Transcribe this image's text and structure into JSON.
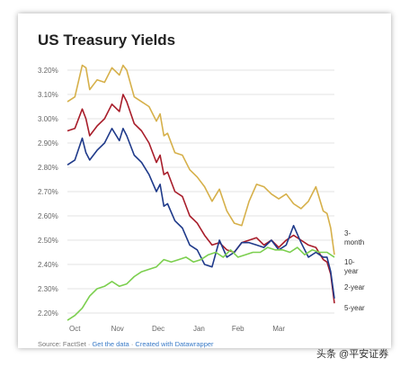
{
  "title": "US Treasury Yields",
  "footer": {
    "source": "Source: FactSet",
    "sep1": " · ",
    "get_data": "Get the data",
    "sep2": " · ",
    "created": "Created with Datawrapper"
  },
  "watermark": "头条 @平安证券",
  "chart_data": {
    "type": "line",
    "title": "US Treasury Yields",
    "xlabel": "",
    "ylabel": "",
    "x_ticks": [
      "Oct",
      "Nov",
      "Dec",
      "Jan",
      "Feb",
      "Mar"
    ],
    "y_ticks": [
      "3.20%",
      "3.10%",
      "3.00%",
      "2.90%",
      "2.80%",
      "2.70%",
      "2.60%",
      "2.50%",
      "2.40%",
      "2.30%",
      "2.20%"
    ],
    "ylim": [
      2.2,
      3.2
    ],
    "grid": true,
    "x_index_note": "x is trading-day index from late Sep to late Mar",
    "colors": {
      "3-month": "#7ccf4f",
      "10-year": "#d6b04a",
      "2-year": "#a81d2a",
      "5-year": "#1f3a8a"
    },
    "series": [
      {
        "name": "10-year",
        "end_label": "10-\nyear",
        "x": [
          0,
          4,
          8,
          10,
          12,
          16,
          20,
          24,
          28,
          30,
          32,
          36,
          40,
          44,
          48,
          50,
          52,
          54,
          58,
          62,
          66,
          70,
          74,
          78,
          82,
          86,
          90,
          94,
          98,
          102,
          106,
          110,
          114,
          118,
          122,
          126,
          130,
          134,
          138,
          140,
          142,
          144
        ],
        "values": [
          3.07,
          3.09,
          3.22,
          3.21,
          3.12,
          3.16,
          3.15,
          3.21,
          3.18,
          3.22,
          3.2,
          3.09,
          3.07,
          3.05,
          2.99,
          3.02,
          2.93,
          2.94,
          2.86,
          2.85,
          2.79,
          2.76,
          2.72,
          2.66,
          2.71,
          2.62,
          2.57,
          2.56,
          2.66,
          2.73,
          2.72,
          2.69,
          2.67,
          2.69,
          2.65,
          2.63,
          2.66,
          2.72,
          2.62,
          2.61,
          2.55,
          2.44
        ]
      },
      {
        "name": "2-year",
        "end_label": "2-year",
        "x": [
          0,
          4,
          8,
          10,
          12,
          16,
          20,
          24,
          28,
          30,
          32,
          36,
          40,
          44,
          48,
          50,
          52,
          54,
          58,
          62,
          66,
          70,
          74,
          78,
          82,
          86,
          90,
          94,
          98,
          102,
          106,
          110,
          114,
          118,
          122,
          126,
          130,
          134,
          138,
          140,
          142,
          144
        ],
        "values": [
          2.95,
          2.96,
          3.04,
          3.0,
          2.93,
          2.97,
          3.0,
          3.06,
          3.03,
          3.1,
          3.07,
          2.98,
          2.95,
          2.9,
          2.82,
          2.85,
          2.77,
          2.78,
          2.7,
          2.68,
          2.6,
          2.57,
          2.52,
          2.48,
          2.49,
          2.46,
          2.45,
          2.49,
          2.5,
          2.51,
          2.48,
          2.5,
          2.47,
          2.5,
          2.52,
          2.5,
          2.48,
          2.47,
          2.42,
          2.41,
          2.36,
          2.24
        ]
      },
      {
        "name": "5-year",
        "end_label": "5-year",
        "x": [
          0,
          4,
          8,
          10,
          12,
          16,
          20,
          24,
          28,
          30,
          32,
          36,
          40,
          44,
          48,
          50,
          52,
          54,
          58,
          62,
          66,
          70,
          74,
          78,
          82,
          86,
          90,
          94,
          98,
          102,
          106,
          110,
          114,
          118,
          122,
          126,
          130,
          134,
          138,
          140,
          142,
          144
        ],
        "values": [
          2.81,
          2.83,
          2.92,
          2.86,
          2.83,
          2.87,
          2.9,
          2.96,
          2.91,
          2.96,
          2.93,
          2.85,
          2.82,
          2.77,
          2.7,
          2.73,
          2.64,
          2.65,
          2.58,
          2.55,
          2.48,
          2.46,
          2.4,
          2.39,
          2.5,
          2.43,
          2.45,
          2.49,
          2.49,
          2.48,
          2.47,
          2.5,
          2.46,
          2.48,
          2.56,
          2.49,
          2.43,
          2.45,
          2.43,
          2.43,
          2.37,
          2.26
        ]
      },
      {
        "name": "3-month",
        "end_label": "3-\nmonth",
        "x": [
          0,
          4,
          8,
          12,
          16,
          20,
          24,
          28,
          32,
          36,
          40,
          44,
          48,
          52,
          56,
          60,
          64,
          68,
          72,
          76,
          80,
          84,
          88,
          92,
          96,
          100,
          104,
          108,
          112,
          116,
          120,
          124,
          128,
          132,
          136,
          140,
          144
        ],
        "values": [
          2.17,
          2.19,
          2.22,
          2.27,
          2.3,
          2.31,
          2.33,
          2.31,
          2.32,
          2.35,
          2.37,
          2.38,
          2.39,
          2.42,
          2.41,
          2.42,
          2.43,
          2.41,
          2.42,
          2.44,
          2.45,
          2.43,
          2.46,
          2.43,
          2.44,
          2.45,
          2.45,
          2.47,
          2.46,
          2.46,
          2.45,
          2.47,
          2.44,
          2.46,
          2.45,
          2.45,
          2.43
        ]
      }
    ]
  }
}
